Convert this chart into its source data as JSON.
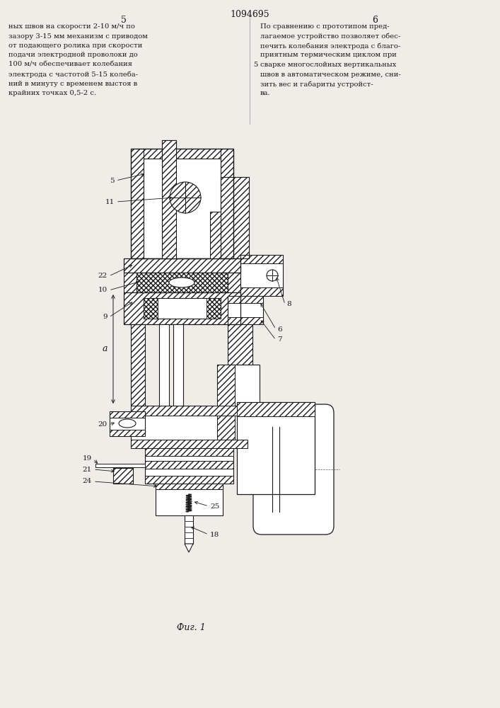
{
  "page_number_center": "1094695",
  "page_left": "5",
  "page_right": "6",
  "text_left": [
    "ных швов на скорости 2-10 м/ч по",
    "зазору 3-15 мм механизм с приводом",
    "от подающего ролика при скорости",
    "подачи электродной проволоки до",
    "100 м/ч обеспечивает колебания",
    "электрода с частотой 5-15 колеба-",
    "ний в минуту с временем выстоя в",
    "крайних точках 0,5-2 с."
  ],
  "text_right": [
    "По сравнению с прототипом пред-",
    "лагаемое устройство позволяет обес-",
    "печить колебания электрода с благо-",
    "приятным термическим циклом при",
    "сварке многослойных вертикальных",
    "швов в автоматическом режиме, сни-",
    "зить вес и габариты устройст-",
    "ва."
  ],
  "fig_caption": "Фиг. 1",
  "bg_color": "#f0ede8",
  "line_color": "#1a1a1a"
}
